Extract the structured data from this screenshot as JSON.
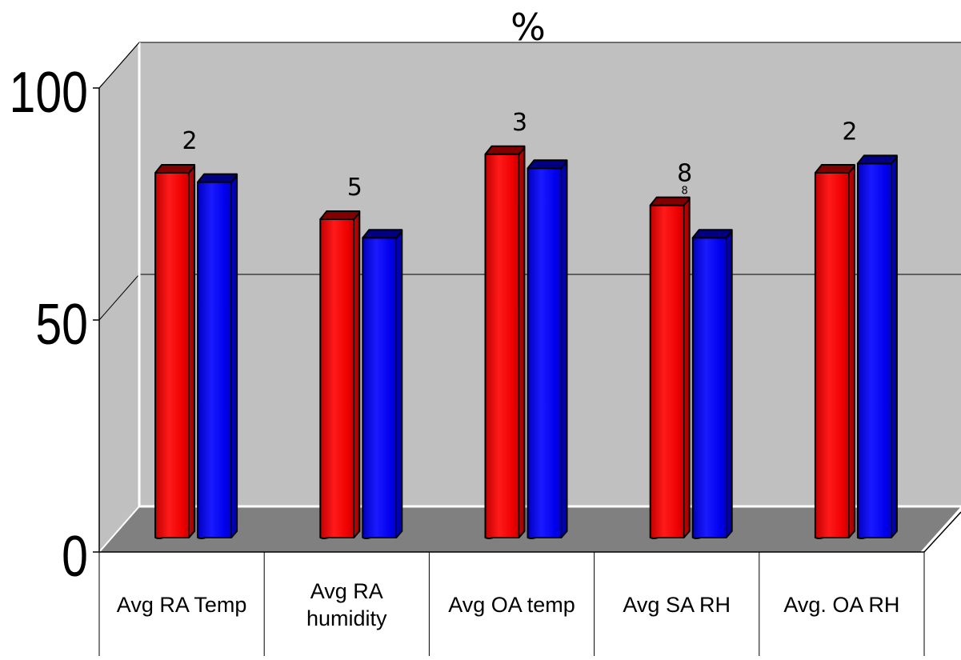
{
  "chart_data": {
    "type": "bar",
    "title": "%",
    "xlabel": "",
    "ylabel": "",
    "ylim": [
      0,
      100
    ],
    "yticks": [
      0,
      50,
      100
    ],
    "grid": true,
    "legend": "none",
    "categories": [
      [
        "Avg RA Temp"
      ],
      [
        "Avg RA",
        "humidity"
      ],
      [
        "Avg OA temp"
      ],
      [
        "Avg SA RH"
      ],
      [
        "Avg. OA RH"
      ]
    ],
    "series": [
      {
        "color": "#ff0000",
        "values": [
          80,
          70,
          84,
          73,
          80
        ]
      },
      {
        "color": "#0000ff",
        "values": [
          78,
          66,
          81,
          66,
          82
        ]
      }
    ],
    "annotations": [
      {
        "category_index": 0,
        "text": "2"
      },
      {
        "category_index": 1,
        "text": "5"
      },
      {
        "category_index": 2,
        "text": "3"
      },
      {
        "category_index": 3,
        "text": "8",
        "subtext": "8"
      },
      {
        "category_index": 4,
        "text": "2"
      }
    ],
    "colors": {
      "wall": "#c0c0c0",
      "floor": "#808080",
      "background": "#ffffff"
    }
  }
}
